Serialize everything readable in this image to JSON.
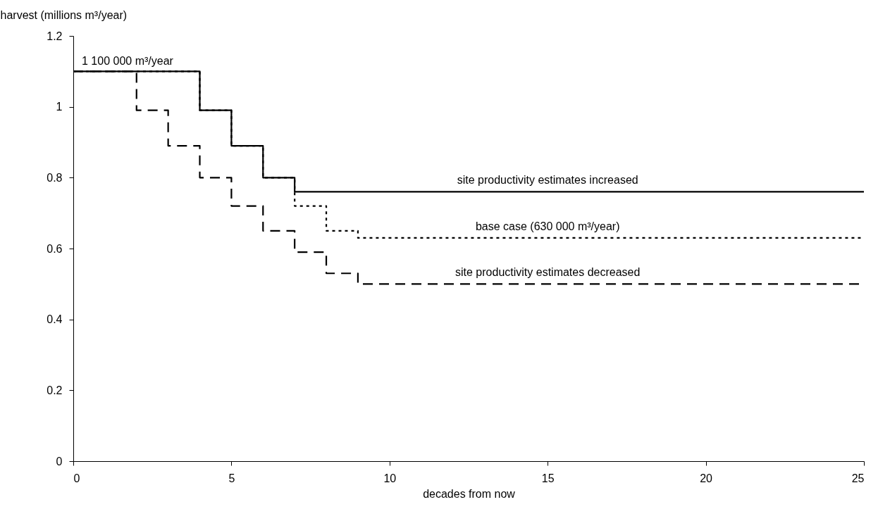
{
  "chart_data": {
    "type": "step",
    "xlabel": "decades from now",
    "ylabel": "harvest (millions m³/year)",
    "x": [
      0,
      1,
      2,
      3,
      4,
      5,
      6,
      7,
      8,
      9,
      10,
      11,
      12,
      13,
      14,
      15,
      16,
      17,
      18,
      19,
      20,
      21,
      22,
      23,
      24,
      25
    ],
    "series": [
      {
        "name": "base case (630 000 m³/year)",
        "color": "#000000",
        "line_style": "dotted",
        "values": [
          1.1,
          1.1,
          1.1,
          1.1,
          0.99,
          0.89,
          0.8,
          0.72,
          0.65,
          0.63,
          0.63,
          0.63,
          0.63,
          0.63,
          0.63,
          0.63,
          0.63,
          0.63,
          0.63,
          0.63,
          0.63,
          0.63,
          0.63,
          0.63,
          0.63,
          0.63
        ]
      },
      {
        "name": "site productivity estimates increased",
        "color": "#000000",
        "line_style": "solid",
        "values": [
          1.1,
          1.1,
          1.1,
          1.1,
          0.99,
          0.89,
          0.8,
          0.76,
          0.76,
          0.76,
          0.76,
          0.76,
          0.76,
          0.76,
          0.76,
          0.76,
          0.76,
          0.76,
          0.76,
          0.76,
          0.76,
          0.76,
          0.76,
          0.76,
          0.76,
          0.76
        ]
      },
      {
        "name": "site productivity estimates decreased",
        "color": "#000000",
        "line_style": "dashed",
        "values": [
          1.1,
          1.1,
          0.99,
          0.89,
          0.8,
          0.72,
          0.65,
          0.59,
          0.53,
          0.5,
          0.5,
          0.5,
          0.5,
          0.5,
          0.5,
          0.5,
          0.5,
          0.5,
          0.5,
          0.5,
          0.5,
          0.5,
          0.5,
          0.5,
          0.5,
          0.5
        ]
      }
    ],
    "annotations": [
      {
        "text": "1 100 000 m³/year",
        "x": 0,
        "y": 1.1
      }
    ],
    "xlim": [
      0,
      25
    ],
    "xticks": [
      0,
      5,
      10,
      15,
      20,
      25
    ],
    "ylim": [
      0,
      1.2
    ],
    "yticks": [
      0,
      0.2,
      0.4,
      0.6,
      0.8,
      1,
      1.2
    ],
    "grid": false
  }
}
